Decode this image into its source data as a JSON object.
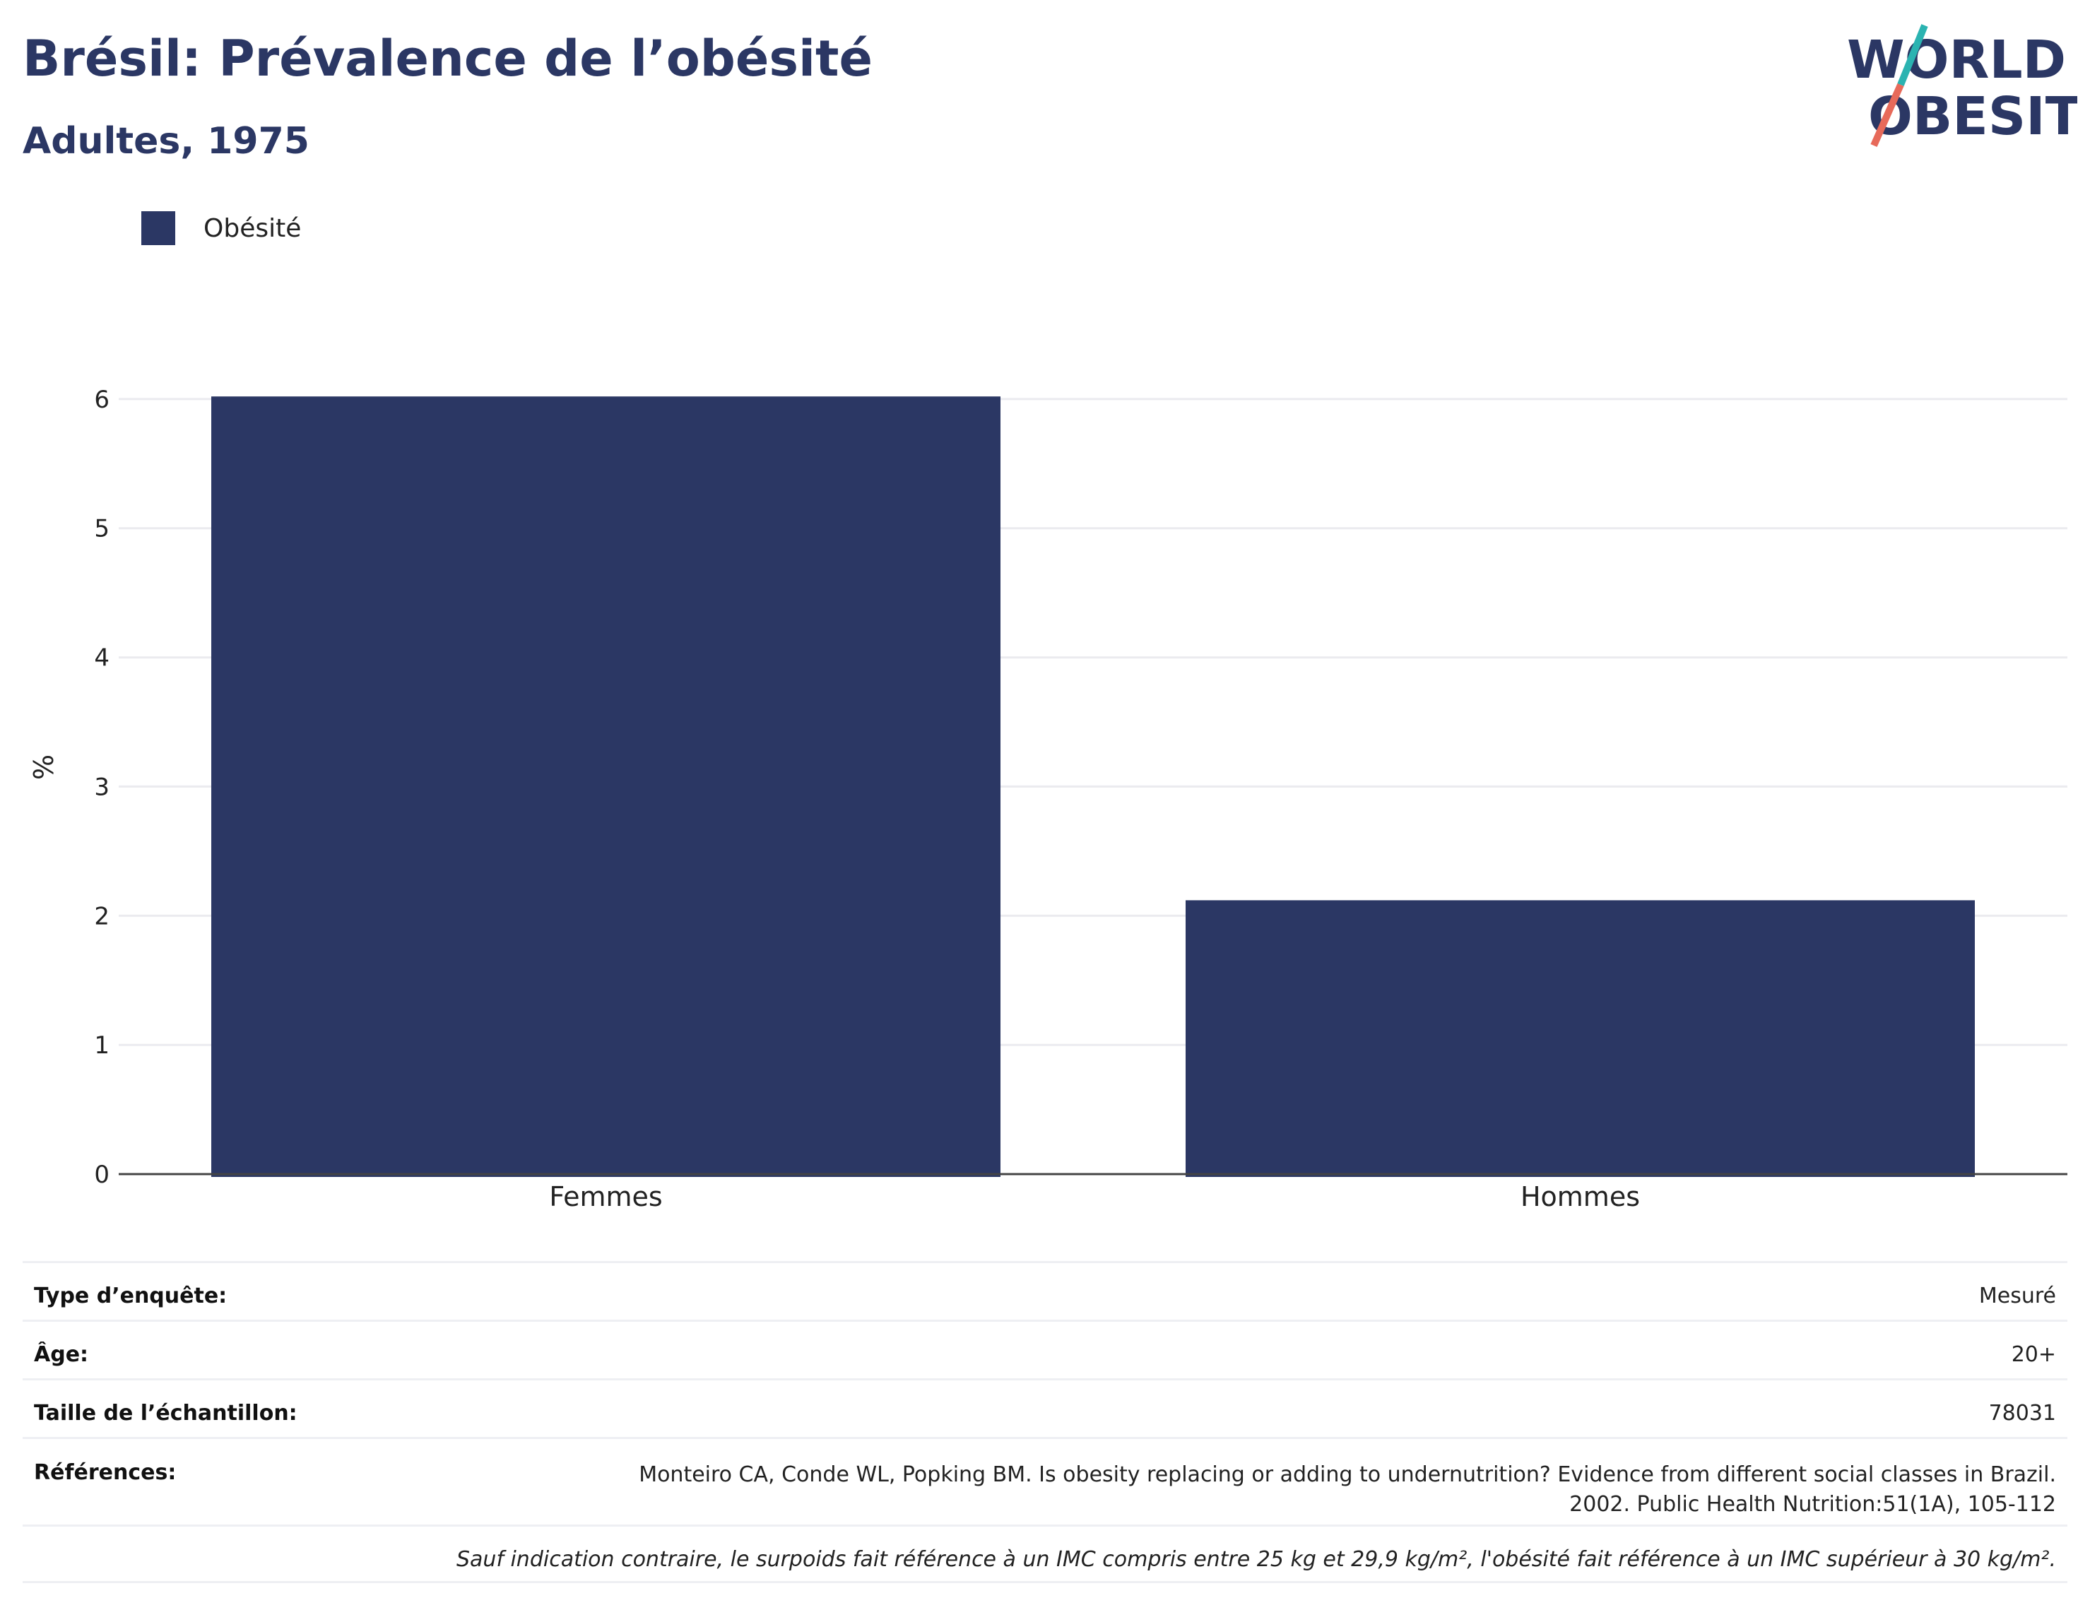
{
  "header": {
    "title": "Brésil: Prévalence de l’obésité",
    "subtitle": "Adultes, 1975"
  },
  "logo": {
    "line1": "WORLD",
    "line2": "OBESITY",
    "text_color": "#2b3764",
    "slash_color_top": "#2bb3b1",
    "slash_color_bottom": "#e76a5a"
  },
  "legend": {
    "label": "Obésité",
    "color": "#2b3764"
  },
  "chart_data": {
    "type": "bar",
    "categories": [
      "Femmes",
      "Hommes"
    ],
    "series": [
      {
        "name": "Obésité",
        "values": [
          6.02,
          2.12
        ],
        "color": "#2b3764"
      }
    ],
    "ylabel": "%",
    "ylim": [
      0,
      6.3
    ],
    "yticks": [
      0,
      1,
      2,
      3,
      4,
      5,
      6
    ],
    "grid": true
  },
  "info": {
    "rows": [
      {
        "key": "Type d’enquête:",
        "value": "Mesuré"
      },
      {
        "key": "Âge:",
        "value": "20+"
      },
      {
        "key": "Taille de l’échantillon:",
        "value": "78031"
      }
    ],
    "references": {
      "key": "Références:",
      "line1": "Monteiro CA, Conde WL, Popking BM. Is obesity replacing or adding to undernutrition? Evidence from different social classes in Brazil.",
      "line2": "2002. Public Health Nutrition:51(1A), 105-112"
    },
    "note": "Sauf indication contraire, le surpoids fait référence à un IMC compris entre 25 kg et 29,9 kg/m², l'obésité fait référence à un IMC supérieur à 30 kg/m²."
  }
}
